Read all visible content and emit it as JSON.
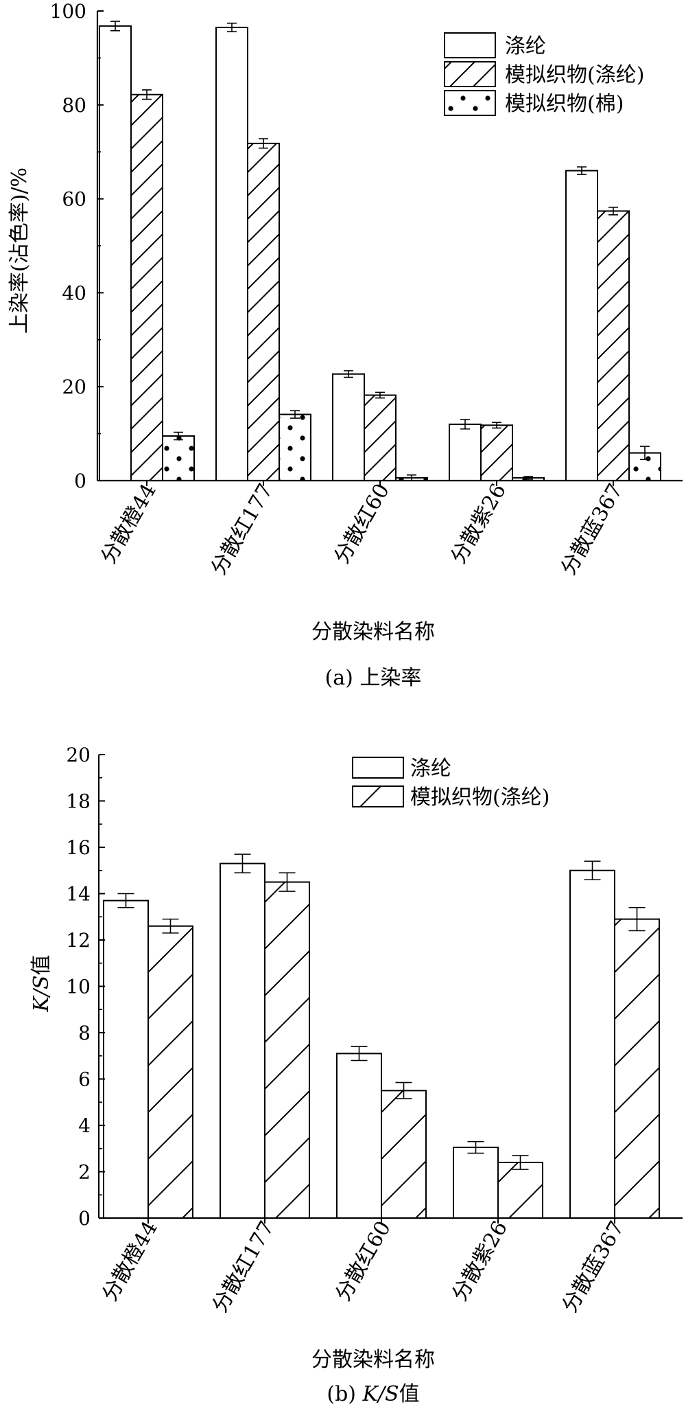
{
  "chart_data": [
    {
      "type": "bar",
      "title": "",
      "caption": "(a) 上染率",
      "xlabel": "分散染料名称",
      "ylabel": "上染率(沾色率)/%",
      "ylim": [
        0,
        100
      ],
      "yticks": [
        0,
        20,
        40,
        60,
        80,
        100
      ],
      "grid": false,
      "legend_position": "top-right",
      "categories": [
        "分散橙44",
        "分散红177",
        "分散红60",
        "分散紫26",
        "分散蓝367"
      ],
      "series": [
        {
          "name": "涤纶",
          "pattern": "plain",
          "values": [
            96.8,
            96.5,
            22.7,
            12.0,
            66.0
          ],
          "errors": [
            1.0,
            0.9,
            0.7,
            1.0,
            0.8
          ]
        },
        {
          "name": "模拟织物(涤纶)",
          "pattern": "hatch",
          "values": [
            82.2,
            71.8,
            18.2,
            11.8,
            57.4
          ],
          "errors": [
            1.0,
            1.0,
            0.6,
            0.6,
            0.8
          ]
        },
        {
          "name": "模拟织物(棉)",
          "pattern": "dots",
          "values": [
            9.5,
            14.1,
            0.6,
            0.6,
            5.9
          ],
          "errors": [
            0.8,
            0.8,
            0.6,
            0.3,
            1.4
          ]
        }
      ]
    },
    {
      "type": "bar",
      "title": "",
      "caption_prefix": "(b) ",
      "caption_italic": "K/S",
      "caption_suffix": "值",
      "xlabel": "分散染料名称",
      "ylabel_italic": "K/S",
      "ylabel_suffix": "值",
      "ylim": [
        0,
        20
      ],
      "yticks": [
        0,
        2,
        4,
        6,
        8,
        10,
        12,
        14,
        16,
        18,
        20
      ],
      "grid": false,
      "legend_position": "top-center",
      "categories": [
        "分散橙44",
        "分散红177",
        "分散红60",
        "分散紫26",
        "分散蓝367"
      ],
      "series": [
        {
          "name": "涤纶",
          "pattern": "plain",
          "values": [
            13.7,
            15.3,
            7.1,
            3.05,
            15.0
          ],
          "errors": [
            0.3,
            0.4,
            0.3,
            0.25,
            0.4
          ]
        },
        {
          "name": "模拟织物(涤纶)",
          "pattern": "hatch",
          "values": [
            12.6,
            14.5,
            5.5,
            2.4,
            12.9
          ],
          "errors": [
            0.3,
            0.4,
            0.35,
            0.3,
            0.5
          ]
        }
      ]
    }
  ]
}
